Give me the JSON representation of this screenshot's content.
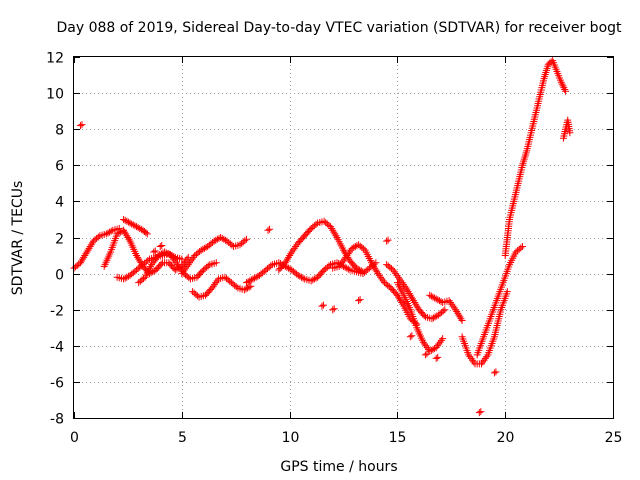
{
  "chart_data": {
    "type": "scatter",
    "title": "Day 088 of 2019, Sidereal Day-to-day VTEC variation (SDTVAR) for receiver bogt",
    "xlabel": "GPS time / hours",
    "ylabel": "SDTVAR / TECUs",
    "xlim": [
      0,
      25
    ],
    "ylim": [
      -8,
      12
    ],
    "xticks": [
      "0",
      "5",
      "10",
      "15",
      "20",
      "25"
    ],
    "yticks": [
      "-8",
      "-6",
      "-4",
      "-2",
      "0",
      "2",
      "4",
      "6",
      "8",
      "10",
      "12"
    ],
    "grid": true,
    "marker": "+",
    "colors": {
      "series": "#ff0000",
      "grid": "#a0a0a0",
      "axis": "#000000"
    },
    "series": [
      {
        "name": "t1",
        "x": [
          0.0,
          0.3,
          0.6,
          0.9,
          1.2,
          1.5,
          1.8,
          2.1
        ],
        "y": [
          0.3,
          0.6,
          1.2,
          1.8,
          2.1,
          2.2,
          2.4,
          2.5
        ]
      },
      {
        "name": "t2",
        "x": [
          1.4,
          1.7,
          2.0,
          2.3,
          2.6,
          2.9,
          3.2,
          3.5
        ],
        "y": [
          0.4,
          1.2,
          2.2,
          2.4,
          1.8,
          1.0,
          0.4,
          0.0
        ]
      },
      {
        "name": "t3",
        "x": [
          2.0,
          2.3,
          2.6,
          2.9,
          3.2,
          3.5,
          3.8,
          4.1,
          4.4,
          4.7,
          5.0
        ],
        "y": [
          -0.2,
          -0.3,
          -0.1,
          0.2,
          0.5,
          0.8,
          0.9,
          1.0,
          1.1,
          0.9,
          0.8
        ]
      },
      {
        "name": "t4",
        "x": [
          2.3,
          2.6,
          2.9,
          3.2,
          3.4
        ],
        "y": [
          3.0,
          2.8,
          2.6,
          2.4,
          2.2
        ]
      },
      {
        "name": "t5",
        "x": [
          3.0,
          3.3,
          3.6,
          3.9,
          4.2,
          4.5,
          4.8,
          5.1,
          5.4,
          5.7,
          6.0,
          6.3,
          6.6
        ],
        "y": [
          -0.5,
          -0.2,
          0.5,
          1.0,
          1.2,
          1.0,
          0.5,
          0.0,
          -0.3,
          -0.2,
          0.2,
          0.5,
          0.6
        ]
      },
      {
        "name": "t6",
        "x": [
          3.5,
          3.8,
          4.1,
          4.4,
          4.7,
          5.0,
          5.3
        ],
        "y": [
          0.0,
          0.2,
          0.6,
          0.6,
          0.2,
          0.4,
          0.9
        ]
      },
      {
        "name": "t7",
        "x": [
          5.5,
          5.8,
          6.1,
          6.4,
          6.7,
          7.0,
          7.3,
          7.6,
          7.9,
          8.2
        ],
        "y": [
          -1.0,
          -1.3,
          -1.2,
          -0.8,
          -0.3,
          -0.2,
          -0.5,
          -0.8,
          -0.9,
          -0.7
        ]
      },
      {
        "name": "t8",
        "x": [
          5.0,
          5.3,
          5.6,
          5.9,
          6.2,
          6.5,
          6.8,
          7.1,
          7.4,
          7.7,
          8.0
        ],
        "y": [
          0.0,
          0.5,
          1.0,
          1.3,
          1.5,
          1.8,
          2.0,
          1.8,
          1.5,
          1.6,
          1.9
        ]
      },
      {
        "name": "t9",
        "x": [
          8.0,
          8.3,
          8.6,
          8.9,
          9.2,
          9.5,
          9.8,
          10.1,
          10.4,
          10.7,
          11.0,
          11.3,
          11.6,
          11.9,
          12.2,
          12.5,
          12.8,
          13.1,
          13.4,
          13.7,
          14.0
        ],
        "y": [
          -0.5,
          -0.3,
          -0.1,
          0.2,
          0.5,
          0.6,
          0.4,
          0.2,
          -0.1,
          -0.3,
          -0.4,
          -0.2,
          0.2,
          0.5,
          0.6,
          0.4,
          0.2,
          0.1,
          0.0,
          0.3,
          0.6
        ]
      },
      {
        "name": "t10",
        "x": [
          9.5,
          9.8,
          10.1,
          10.4,
          10.7,
          11.0,
          11.3,
          11.6,
          11.9,
          12.2,
          12.5,
          12.8,
          13.1,
          13.4
        ],
        "y": [
          0.2,
          0.6,
          1.2,
          1.7,
          2.1,
          2.5,
          2.8,
          2.9,
          2.6,
          2.0,
          1.3,
          0.7,
          0.3,
          0.1
        ]
      },
      {
        "name": "t11",
        "x": [
          12.0,
          12.3,
          12.6,
          12.9,
          13.2,
          13.5,
          13.8,
          14.1,
          14.4,
          14.7,
          15.0,
          15.3,
          15.6,
          15.9
        ],
        "y": [
          0.3,
          0.4,
          0.9,
          1.4,
          1.6,
          1.3,
          0.6,
          0.0,
          -0.5,
          -0.8,
          -1.2,
          -1.8,
          -2.5,
          -2.8
        ]
      },
      {
        "name": "t12",
        "x": [
          14.5,
          14.8,
          15.1,
          15.4,
          15.7,
          16.0,
          16.3,
          16.6,
          16.9,
          17.2
        ],
        "y": [
          0.5,
          0.2,
          -0.3,
          -0.8,
          -1.4,
          -2.0,
          -2.4,
          -2.5,
          -2.3,
          -2.0
        ]
      },
      {
        "name": "t13",
        "x": [
          15.0,
          15.3,
          15.6,
          15.9,
          16.2,
          16.5,
          16.8,
          17.1
        ],
        "y": [
          -0.5,
          -1.2,
          -2.0,
          -3.0,
          -3.8,
          -4.3,
          -4.1,
          -3.6
        ]
      },
      {
        "name": "t14",
        "x": [
          16.5,
          16.8,
          17.1,
          17.4,
          17.7,
          18.0
        ],
        "y": [
          -1.2,
          -1.4,
          -1.6,
          -1.5,
          -2.0,
          -2.6
        ]
      },
      {
        "name": "t15",
        "x": [
          18.0,
          18.3,
          18.6,
          18.9,
          19.2,
          19.5,
          19.8,
          20.1
        ],
        "y": [
          -3.5,
          -4.5,
          -5.0,
          -5.0,
          -4.5,
          -3.5,
          -2.0,
          -1.0
        ]
      },
      {
        "name": "t16",
        "x": [
          18.7,
          19.0,
          19.3,
          19.6,
          19.9,
          20.2,
          20.5,
          20.8
        ],
        "y": [
          -4.5,
          -3.5,
          -2.5,
          -1.5,
          -0.5,
          0.5,
          1.2,
          1.5
        ]
      },
      {
        "name": "t17",
        "x": [
          20.0,
          20.2,
          20.4,
          20.6,
          20.8,
          21.0,
          21.2,
          21.4,
          21.6,
          21.8,
          22.0,
          22.2,
          22.4,
          22.6,
          22.8
        ],
        "y": [
          1.0,
          3.0,
          4.0,
          5.0,
          6.0,
          6.8,
          7.8,
          8.8,
          9.8,
          10.8,
          11.6,
          11.8,
          11.2,
          10.6,
          10.1
        ]
      },
      {
        "name": "t18",
        "x": [
          22.7,
          22.8,
          22.9,
          23.0
        ],
        "y": [
          7.5,
          8.0,
          8.5,
          7.8
        ]
      },
      {
        "name": "outliers",
        "x": [
          0.3,
          18.8,
          19.5,
          14.5,
          15.6,
          16.3,
          16.8,
          11.5,
          12.0,
          13.2,
          9.0,
          4.0,
          3.7
        ],
        "y": [
          8.2,
          -7.7,
          -5.5,
          1.8,
          -3.5,
          -4.5,
          -4.7,
          -1.8,
          -2.0,
          -1.5,
          2.4,
          1.5,
          1.2
        ]
      }
    ]
  }
}
